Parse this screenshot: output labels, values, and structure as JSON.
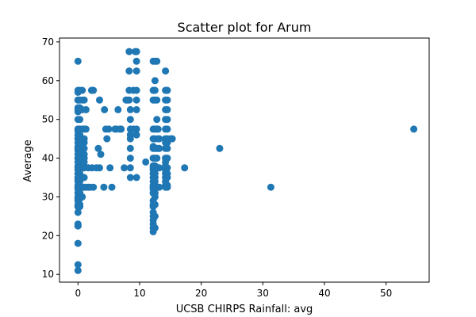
{
  "chart_data": {
    "type": "scatter",
    "title": "Scatter plot for Arum",
    "xlabel": "UCSB CHIRPS Rainfall: avg",
    "ylabel": "Average",
    "xlim": [
      -3,
      57
    ],
    "ylim": [
      8,
      71
    ],
    "xticks": [
      0,
      10,
      20,
      30,
      40,
      50
    ],
    "yticks": [
      10,
      20,
      30,
      40,
      50,
      60,
      70
    ],
    "grid": false,
    "legend": "none",
    "marker_color": "#1f77b4",
    "series": [
      {
        "x": [
          0,
          0,
          0,
          0,
          0,
          0,
          0,
          0,
          0,
          0,
          0,
          0,
          0,
          0,
          0,
          0,
          0,
          0,
          0,
          0,
          0,
          0,
          0,
          0,
          0,
          0,
          0,
          0,
          0,
          0,
          0,
          0,
          0,
          0,
          0,
          0,
          0,
          0,
          0,
          0,
          0,
          0,
          0,
          0,
          0,
          0,
          0,
          0,
          0,
          0,
          0,
          0,
          0.3,
          0.3,
          0.3,
          0.3,
          0.3,
          0.3,
          0.3,
          0.3,
          0.3,
          0.3,
          0.3,
          0.3,
          0.3,
          0.3,
          0.3,
          0.3,
          0.3,
          0.3,
          0.3,
          0.3,
          0.3,
          0.3,
          0.3,
          0.3,
          0.3,
          0.3,
          0.3,
          0.3,
          0.7,
          0.7,
          0.7,
          0.7,
          0.7,
          0.7,
          0.7,
          0.7,
          0.7,
          0.7,
          0.7,
          0.7,
          0.7,
          1.0,
          1.0,
          1.0,
          1.0,
          1.0,
          1.0,
          1.0,
          1.0,
          1.0,
          1.0,
          1.0,
          1.0,
          1.3,
          1.3,
          1.3,
          1.7,
          1.7,
          2.0,
          2.2,
          2.3,
          2.5,
          2.5,
          3.0,
          3.3,
          3.5,
          3.5,
          3.7,
          4.2,
          4.3,
          4.5,
          4.7,
          5.0,
          5.2,
          5.5,
          6.0,
          6.2,
          6.5,
          6.8,
          7.0,
          7.5,
          7.8,
          8.0,
          8.3,
          8.3,
          8.3,
          8.3,
          8.5,
          8.5,
          8.5,
          8.5,
          8.5,
          8.5,
          8.5,
          8.5,
          8.5,
          9.0,
          9.0,
          9.3,
          9.5,
          9.5,
          9.5,
          9.5,
          9.5,
          9.5,
          9.5,
          9.5,
          9.5,
          11.0,
          12.2,
          12.2,
          12.2,
          12.2,
          12.2,
          12.2,
          12.2,
          12.2,
          12.2,
          12.2,
          12.2,
          12.2,
          12.2,
          12.2,
          12.2,
          12.2,
          12.2,
          12.2,
          12.2,
          12.2,
          12.2,
          12.2,
          12.2,
          12.2,
          12.2,
          12.2,
          12.2,
          12.5,
          12.5,
          12.5,
          12.5,
          12.5,
          12.5,
          12.5,
          12.5,
          12.5,
          12.5,
          12.5,
          12.5,
          12.5,
          12.5,
          12.5,
          12.5,
          12.5,
          12.5,
          12.5,
          12.5,
          12.8,
          12.8,
          12.8,
          12.8,
          12.8,
          12.8,
          12.8,
          13.0,
          13.0,
          13.0,
          13.0,
          13.0,
          13.2,
          13.2,
          13.2,
          13.2,
          14.2,
          14.2,
          14.2,
          14.2,
          14.2,
          14.2,
          14.2,
          14.2,
          14.2,
          14.2,
          14.2,
          14.2,
          14.2,
          14.2,
          14.2,
          14.2,
          14.2,
          14.2,
          14.2,
          14.5,
          14.5,
          14.5,
          14.5,
          14.5,
          14.5,
          14.5,
          14.5,
          14.5,
          14.5,
          14.5,
          14.5,
          14.5,
          14.5,
          15.0,
          15.3,
          17.3,
          23.0,
          31.3,
          54.5
        ],
        "y": [
          65,
          57.5,
          57,
          55,
          53,
          52,
          50,
          47.5,
          47,
          46,
          45,
          44,
          43,
          42.5,
          42,
          41,
          40,
          39,
          38,
          37.5,
          37,
          36,
          35,
          34.5,
          34,
          33,
          32.5,
          32,
          31,
          30,
          29.5,
          29,
          28,
          27.5,
          26,
          23,
          22.5,
          18,
          12.5,
          11,
          55,
          52.5,
          47.5,
          45,
          42.5,
          40,
          37.5,
          35,
          32.5,
          30,
          27.5,
          22.5,
          57.5,
          55,
          53,
          50,
          47.5,
          46,
          45,
          44,
          43,
          42.5,
          42,
          41,
          40,
          39,
          38,
          37.5,
          37,
          36,
          35,
          34,
          33,
          32.5,
          32,
          31,
          30,
          29.5,
          28,
          27.5,
          57.5,
          55,
          52.5,
          47.5,
          45,
          44,
          42.5,
          40,
          39,
          37.5,
          35,
          32.5,
          30,
          55,
          47.5,
          45,
          44,
          42.5,
          41,
          40,
          39,
          38,
          37.5,
          35,
          32.5,
          52.5,
          47.5,
          32.5,
          37.5,
          32.5,
          32.5,
          57.5,
          37.5,
          57.5,
          32.5,
          37.5,
          42.5,
          55,
          37.5,
          41,
          32.5,
          52.5,
          47.5,
          45,
          47.5,
          37.5,
          32.5,
          47.5,
          47.5,
          52.5,
          47.5,
          47.5,
          37.5,
          55,
          55,
          67.5,
          62.5,
          57.5,
          55,
          52.5,
          50,
          47.5,
          46,
          45,
          42.5,
          40,
          37.5,
          35,
          57.5,
          47.5,
          67.5,
          67.5,
          65,
          62.5,
          57.5,
          55,
          52.5,
          47.5,
          46,
          35,
          39,
          65,
          57.5,
          55,
          47.5,
          45,
          43,
          42.5,
          40,
          38,
          37.5,
          37,
          36,
          35,
          34,
          33,
          32.5,
          32,
          31,
          29,
          28,
          27.5,
          26,
          25,
          24,
          23,
          22,
          21,
          65,
          60,
          57.5,
          55,
          47.5,
          45,
          42.5,
          40,
          38,
          37.5,
          36,
          35,
          34,
          33,
          32.5,
          31,
          30,
          28,
          25,
          22,
          65,
          55,
          50,
          47.5,
          42.5,
          40,
          37.5,
          47.5,
          45,
          42.5,
          37.5,
          32.5,
          45,
          42.5,
          37.5,
          32.5,
          62.5,
          57.5,
          55,
          52.5,
          50,
          47.5,
          45,
          44,
          42.5,
          40,
          39,
          38,
          37.5,
          37,
          36,
          35,
          34,
          33,
          32.5,
          57.5,
          55,
          52.5,
          50,
          47.5,
          45,
          44,
          42.5,
          40,
          37.5,
          36,
          35,
          33,
          32.5,
          45,
          45,
          37.5,
          42.5,
          32.5,
          47.5
        ]
      }
    ]
  }
}
